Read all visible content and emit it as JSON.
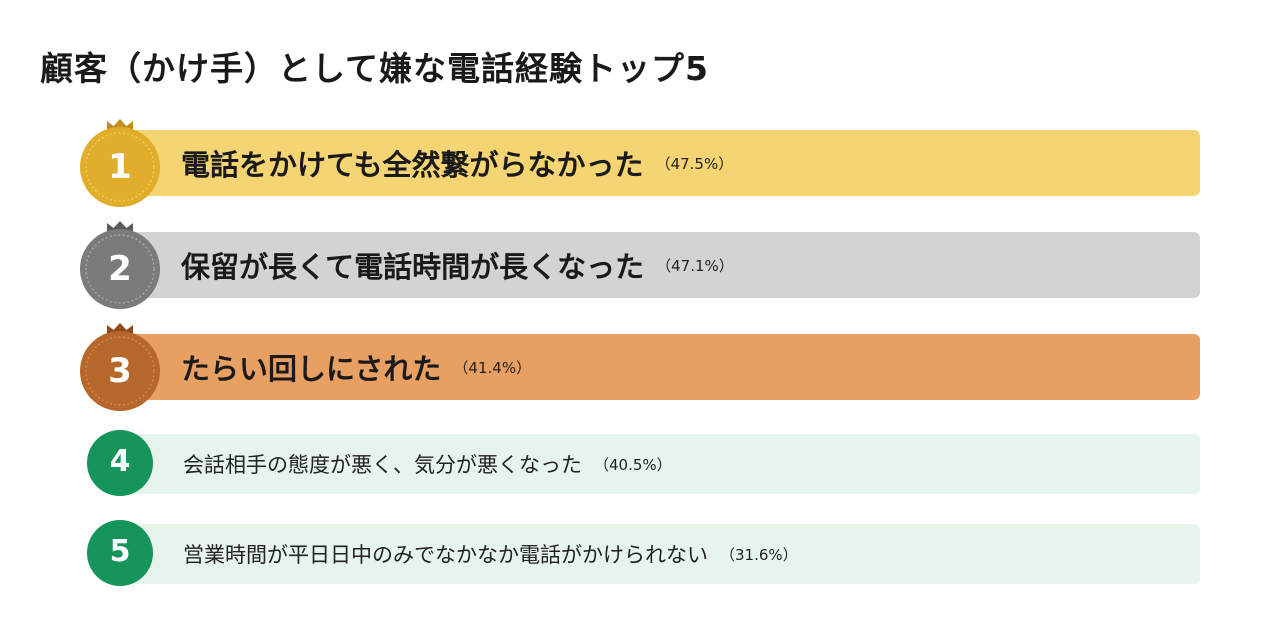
{
  "title": "顧客（かけ手）として嫌な電話経験トップ5",
  "chart_data": {
    "type": "bar",
    "title": "顧客（かけ手）として嫌な電話経験トップ5",
    "categories": [
      "電話をかけても全然繋がらなかった",
      "保留が長くて電話時間が長くなった",
      "たらい回しにされた",
      "会話相手の態度が悪く、気分が悪くなった",
      "営業時間が平日日中のみでなかなか電話がかけられない"
    ],
    "values": [
      47.5,
      47.1,
      41.4,
      40.5,
      31.6
    ],
    "unit": "%"
  },
  "items": [
    {
      "rank": "1",
      "label": "電話をかけても全然繋がらなかった",
      "pct": "（47.5%）",
      "bar_color": "#F5D473",
      "medal_color": "#E0AE2A",
      "medal_rim": "#F1CC5C",
      "crown_color": "#C08E1E"
    },
    {
      "rank": "2",
      "label": "保留が長くて電話時間が長くなった",
      "pct": "（47.1%）",
      "bar_color": "#D3D3D3",
      "medal_color": "#7B7B7B",
      "medal_rim": "#A8A8A8",
      "crown_color": "#5A5A5A"
    },
    {
      "rank": "3",
      "label": "たらい回しにされた",
      "pct": "（41.4%）",
      "bar_color": "#E8A062",
      "medal_color": "#B5672C",
      "medal_rim": "#D08A4E",
      "crown_color": "#8E4B1A"
    },
    {
      "rank": "4",
      "label": "会話相手の態度が悪く、気分が悪くなった",
      "pct": "（40.5%）",
      "bar_color": "#E6F4EC",
      "medal_color": "#15955A"
    },
    {
      "rank": "5",
      "label": "営業時間が平日日中のみでなかなか電話がかけられない",
      "pct": "（31.6%）",
      "bar_color": "#E6F4EC",
      "medal_color": "#15955A"
    }
  ]
}
